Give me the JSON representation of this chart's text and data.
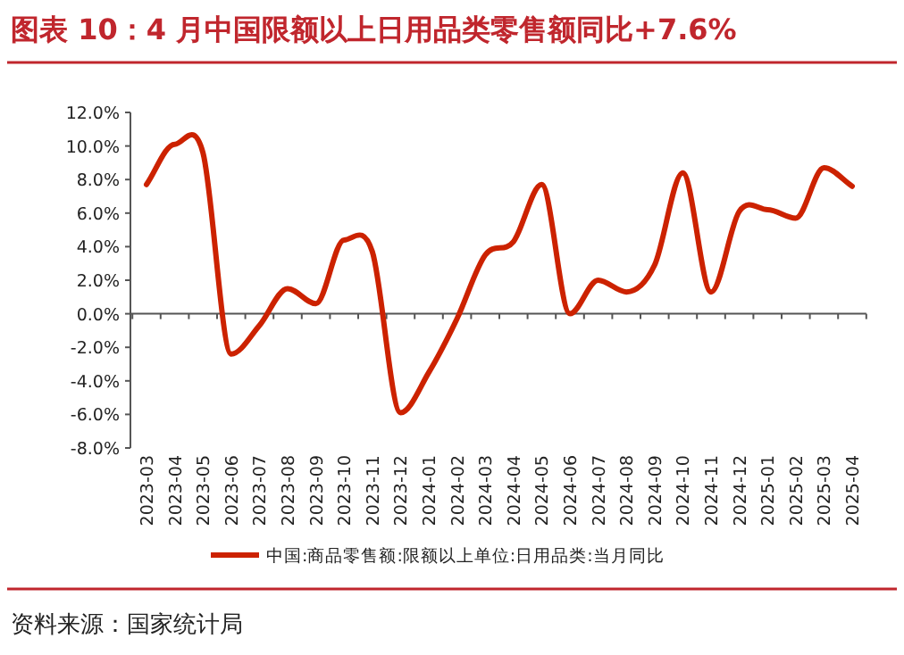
{
  "chart_data": {
    "type": "line",
    "title": "图表 10：4 月中国限额以上日用品类零售额同比+7.6%",
    "categories": [
      "2023-03",
      "2023-04",
      "2023-05",
      "2023-06",
      "2023-07",
      "2023-08",
      "2023-09",
      "2023-10",
      "2023-11",
      "2023-12",
      "2024-01",
      "2024-02",
      "2024-03",
      "2024-04",
      "2024-05",
      "2024-06",
      "2024-07",
      "2024-08",
      "2024-09",
      "2024-10",
      "2024-11",
      "2024-12",
      "2025-01",
      "2025-02",
      "2025-03",
      "2025-04"
    ],
    "series": [
      {
        "name": "中国:商品零售额:限额以上单位:日用品类:当月同比",
        "color": "#cc2200",
        "values": [
          7.7,
          10.1,
          9.6,
          -2.4,
          -0.7,
          1.5,
          0.6,
          4.4,
          3.7,
          -5.9,
          -3.5,
          -0.3,
          3.5,
          4.3,
          7.7,
          0.0,
          2.0,
          1.3,
          2.9,
          8.4,
          1.3,
          6.1,
          6.2,
          5.7,
          8.7,
          7.6
        ]
      }
    ],
    "ylim": [
      -8,
      12
    ],
    "yticks": [
      {
        "value": -8,
        "label": "-8.0%"
      },
      {
        "value": -6,
        "label": "-6.0%"
      },
      {
        "value": -4,
        "label": "-4.0%"
      },
      {
        "value": -2,
        "label": "-2.0%"
      },
      {
        "value": 0,
        "label": "0.0%"
      },
      {
        "value": 2,
        "label": "2.0%"
      },
      {
        "value": 4,
        "label": "4.0%"
      },
      {
        "value": 6,
        "label": "6.0%"
      },
      {
        "value": 8,
        "label": "8.0%"
      },
      {
        "value": 10,
        "label": "10.0%"
      },
      {
        "value": 12,
        "label": "12.0%"
      }
    ],
    "legend": "bottom",
    "marker": "none",
    "line_style": "solid",
    "annotations": [
      "资料来源：国家统计局"
    ]
  }
}
